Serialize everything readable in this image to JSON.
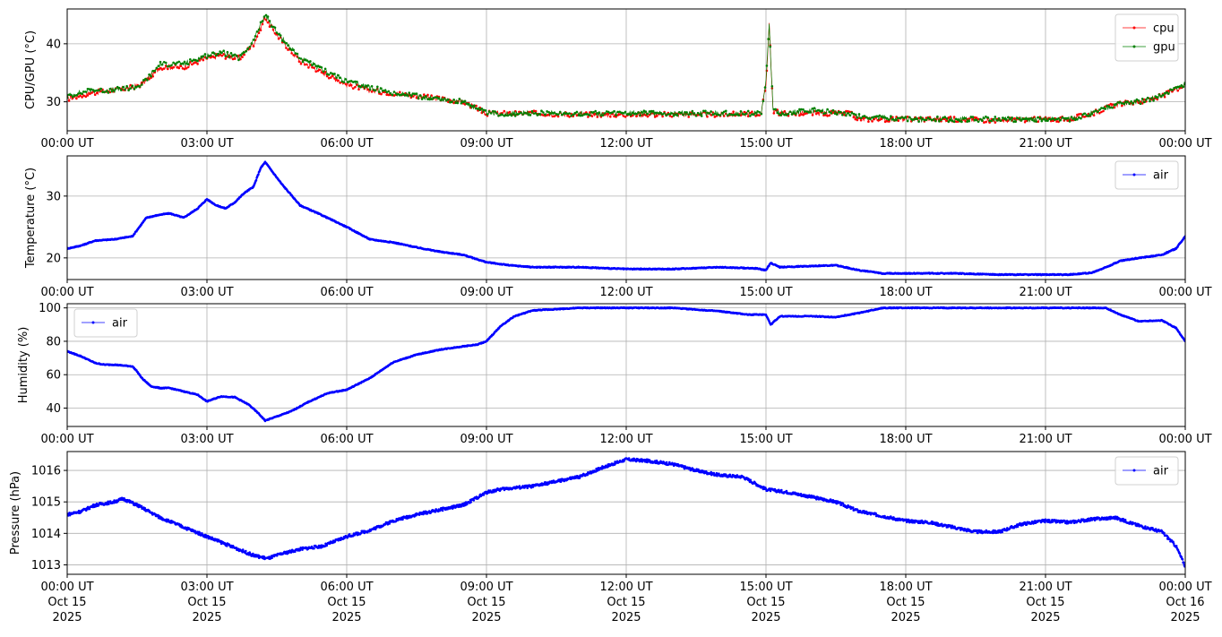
{
  "chart_data": [
    {
      "type": "line",
      "ylabel": "CPU/GPU (°C)",
      "ylim": [
        25,
        46
      ],
      "yticks": [
        30,
        40
      ],
      "xlim": [
        0,
        24
      ],
      "xticks": [
        0,
        3,
        6,
        9,
        12,
        15,
        18,
        21,
        24
      ],
      "xtick_labels": [
        "00:00 UT",
        "03:00 UT",
        "06:00 UT",
        "09:00 UT",
        "12:00 UT",
        "15:00 UT",
        "18:00 UT",
        "21:00 UT",
        "00:00 UT"
      ],
      "grid": true,
      "legend": "top-right",
      "series": [
        {
          "name": "cpu",
          "color": "#ff0000",
          "x": [
            0,
            0.5,
            1.0,
            1.4,
            1.6,
            2.0,
            2.5,
            3.0,
            3.3,
            3.7,
            4.0,
            4.25,
            4.5,
            5.0,
            5.5,
            6.0,
            6.5,
            7.0,
            7.5,
            8.0,
            8.5,
            9.0,
            10,
            11,
            12,
            13,
            14,
            14.9,
            15.0,
            15.07,
            15.15,
            15.3,
            16,
            16.8,
            17,
            18,
            19,
            20,
            21,
            21.5,
            22,
            22.5,
            23,
            23.5,
            24
          ],
          "y": [
            30.5,
            31.5,
            32,
            32.5,
            33,
            36,
            36,
            37.5,
            38,
            37.5,
            40,
            44.5,
            41.5,
            37,
            35,
            33,
            32,
            31.5,
            31,
            30.5,
            30,
            28,
            28,
            27.8,
            27.8,
            27.8,
            27.8,
            28,
            33,
            43.5,
            28.5,
            28,
            28,
            28,
            27,
            27,
            27,
            26.8,
            27,
            27,
            28,
            29.5,
            30,
            31,
            33
          ]
        },
        {
          "name": "gpu",
          "color": "#008000",
          "x": [
            0,
            0.5,
            1.0,
            1.4,
            1.6,
            2.0,
            2.5,
            3.0,
            3.3,
            3.7,
            4.0,
            4.25,
            4.5,
            5.0,
            5.5,
            6.0,
            6.5,
            7.0,
            7.5,
            8.0,
            8.5,
            9.0,
            10,
            11,
            12,
            13,
            14,
            14.9,
            15.0,
            15.07,
            15.15,
            15.3,
            16,
            16.8,
            17,
            18,
            19,
            20,
            21,
            21.5,
            22,
            22.5,
            23,
            23.5,
            24
          ],
          "y": [
            31,
            32,
            32,
            32.5,
            33,
            36.5,
            36.5,
            38,
            38.5,
            37.5,
            40.5,
            45,
            42,
            37.5,
            35.5,
            33.5,
            32.5,
            31.5,
            31,
            30.5,
            30,
            28,
            28,
            28,
            28,
            28,
            28,
            28,
            33.5,
            43.5,
            28.5,
            28,
            28.5,
            28,
            27.5,
            27,
            27,
            27,
            27,
            27,
            28,
            29.5,
            30,
            31,
            33
          ]
        }
      ]
    },
    {
      "type": "line",
      "ylabel": "Temperature (°C)",
      "ylim": [
        16.5,
        36.5
      ],
      "yticks": [
        20,
        30
      ],
      "xlim": [
        0,
        24
      ],
      "xticks": [
        0,
        3,
        6,
        9,
        12,
        15,
        18,
        21,
        24
      ],
      "xtick_labels": [
        "00:00 UT",
        "03:00 UT",
        "06:00 UT",
        "09:00 UT",
        "12:00 UT",
        "15:00 UT",
        "18:00 UT",
        "21:00 UT",
        "00:00 UT"
      ],
      "grid": true,
      "legend": "top-right",
      "series": [
        {
          "name": "air",
          "color": "#0000ff",
          "x": [
            0,
            0.3,
            0.6,
            1.0,
            1.4,
            1.5,
            1.7,
            2.0,
            2.2,
            2.5,
            2.8,
            3.0,
            3.2,
            3.4,
            3.6,
            3.8,
            4.0,
            4.15,
            4.25,
            4.4,
            4.6,
            5.0,
            5.5,
            6.0,
            6.5,
            7.0,
            7.5,
            8.0,
            8.5,
            9.0,
            9.5,
            10,
            11,
            12,
            13,
            14,
            14.8,
            15.0,
            15.1,
            15.3,
            16,
            16.5,
            17,
            17.5,
            18,
            19,
            20,
            21,
            21.5,
            22,
            22.3,
            22.6,
            23,
            23.5,
            23.8,
            24
          ],
          "y": [
            21.5,
            22,
            22.8,
            23,
            23.5,
            24.5,
            26.5,
            27,
            27.2,
            26.5,
            28,
            29.5,
            28.5,
            28,
            29,
            30.5,
            31.5,
            34.5,
            35.5,
            34,
            32,
            28.5,
            26.8,
            25,
            23,
            22.5,
            21.7,
            21,
            20.5,
            19.3,
            18.8,
            18.5,
            18.5,
            18.2,
            18.2,
            18.5,
            18.3,
            18,
            19.2,
            18.5,
            18.7,
            18.8,
            18,
            17.5,
            17.5,
            17.5,
            17.3,
            17.3,
            17.3,
            17.6,
            18.5,
            19.5,
            20,
            20.5,
            21.5,
            23.5
          ]
        }
      ]
    },
    {
      "type": "line",
      "ylabel": "Humidity (%)",
      "ylim": [
        29,
        102.5
      ],
      "yticks": [
        40,
        60,
        80,
        100
      ],
      "xlim": [
        0,
        24
      ],
      "xticks": [
        0,
        3,
        6,
        9,
        12,
        15,
        18,
        21,
        24
      ],
      "xtick_labels": [
        "00:00 UT",
        "03:00 UT",
        "06:00 UT",
        "09:00 UT",
        "12:00 UT",
        "15:00 UT",
        "18:00 UT",
        "21:00 UT",
        "00:00 UT"
      ],
      "grid": true,
      "legend": "top-left",
      "series": [
        {
          "name": "air",
          "color": "#0000ff",
          "x": [
            0,
            0.3,
            0.6,
            0.8,
            1.0,
            1.4,
            1.5,
            1.6,
            1.8,
            2.0,
            2.2,
            2.5,
            2.8,
            3.0,
            3.3,
            3.6,
            3.9,
            4.1,
            4.25,
            4.5,
            4.8,
            5.2,
            5.6,
            6.0,
            6.5,
            7.0,
            7.5,
            8.0,
            8.5,
            8.8,
            9.0,
            9.3,
            9.6,
            10,
            11,
            12,
            13,
            14,
            14.6,
            15.0,
            15.1,
            15.3,
            16,
            16.5,
            17,
            17.5,
            18,
            19,
            20,
            21,
            22,
            22.3,
            22.6,
            23,
            23.5,
            23.8,
            24
          ],
          "y": [
            74,
            71,
            67,
            66,
            66,
            65,
            62,
            58,
            53,
            52,
            52,
            50,
            48,
            44,
            47,
            46.5,
            42,
            37,
            32.5,
            35,
            38,
            44,
            49,
            51,
            58,
            67.5,
            72,
            75,
            77,
            78,
            80,
            89,
            95,
            98.5,
            100,
            100,
            100,
            98,
            96,
            96,
            90,
            95,
            95,
            94.5,
            97,
            100,
            100,
            100,
            100,
            100,
            100,
            100,
            96,
            92,
            92.5,
            88,
            80
          ]
        }
      ]
    },
    {
      "type": "line",
      "ylabel": "Pressure (hPa)",
      "ylim": [
        1012.7,
        1016.6
      ],
      "yticks": [
        1013,
        1014,
        1015,
        1016
      ],
      "xlim": [
        0,
        24
      ],
      "xticks": [
        0,
        3,
        6,
        9,
        12,
        15,
        18,
        21,
        24
      ],
      "xtick_labels": [
        "00:00 UT\nOct 15\n2025",
        "03:00 UT\nOct 15\n2025",
        "06:00 UT\nOct 15\n2025",
        "09:00 UT\nOct 15\n2025",
        "12:00 UT\nOct 15\n2025",
        "15:00 UT\nOct 15\n2025",
        "18:00 UT\nOct 15\n2025",
        "21:00 UT\nOct 15\n2025",
        "00:00 UT\nOct 16\n2025"
      ],
      "grid": true,
      "legend": "top-right",
      "series": [
        {
          "name": "air",
          "color": "#0000ff",
          "x": [
            0,
            0.3,
            0.6,
            1.0,
            1.2,
            1.5,
            2.0,
            2.5,
            3.0,
            3.5,
            4.0,
            4.3,
            4.6,
            5.0,
            5.5,
            6.0,
            6.5,
            7.0,
            7.5,
            8.0,
            8.5,
            9.0,
            9.3,
            9.6,
            10,
            10.5,
            11,
            11.5,
            12,
            12.5,
            13,
            13.5,
            14,
            14.5,
            15,
            15.5,
            16,
            16.5,
            17,
            17.5,
            18,
            18.5,
            19,
            19.5,
            20,
            20.5,
            21,
            21.5,
            22,
            22.5,
            23,
            23.5,
            23.8,
            24
          ],
          "y": [
            1014.6,
            1014.7,
            1014.9,
            1015.0,
            1015.1,
            1014.9,
            1014.5,
            1014.2,
            1013.9,
            1013.6,
            1013.3,
            1013.2,
            1013.35,
            1013.5,
            1013.6,
            1013.9,
            1014.1,
            1014.4,
            1014.6,
            1014.75,
            1014.9,
            1015.3,
            1015.4,
            1015.45,
            1015.5,
            1015.65,
            1015.8,
            1016.1,
            1016.35,
            1016.3,
            1016.2,
            1016.0,
            1015.85,
            1015.8,
            1015.4,
            1015.3,
            1015.15,
            1015.0,
            1014.7,
            1014.55,
            1014.4,
            1014.35,
            1014.2,
            1014.05,
            1014.05,
            1014.3,
            1014.4,
            1014.35,
            1014.45,
            1014.5,
            1014.25,
            1014.05,
            1013.6,
            1012.95
          ]
        }
      ]
    }
  ]
}
